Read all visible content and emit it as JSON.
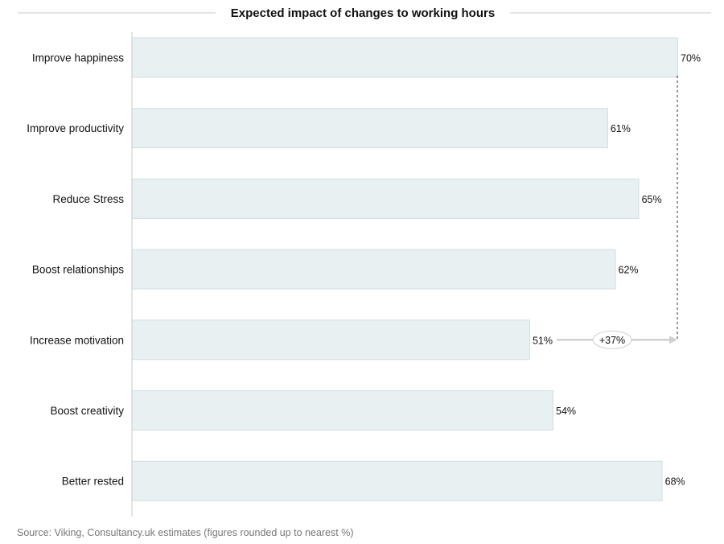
{
  "chart_data": {
    "type": "bar",
    "orientation": "horizontal",
    "title": "Expected impact of changes to working hours",
    "categories": [
      "Improve happiness",
      "Improve productivity",
      "Reduce Stress",
      "Boost relationships",
      "Increase motivation",
      "Boost creativity",
      "Better rested"
    ],
    "values": [
      70,
      61,
      65,
      62,
      51,
      54,
      68
    ],
    "value_labels": [
      "70%",
      "61%",
      "65%",
      "62%",
      "51%",
      "54%",
      "68%"
    ],
    "xlim": [
      0,
      70
    ],
    "grid": false,
    "legend": "none",
    "annotation": {
      "from_category": "Increase motivation",
      "to_category": "Improve happiness",
      "text": "+37%"
    }
  },
  "colors": {
    "bar_fill": "#e8f0f2",
    "bar_stroke": "#d2dde1",
    "axis": "#c8c8c8",
    "arrow": "#d0d0d0",
    "source_text": "#777777"
  },
  "source": "Source: Viking, Consultancy.uk estimates (figures rounded up to nearest  %)"
}
